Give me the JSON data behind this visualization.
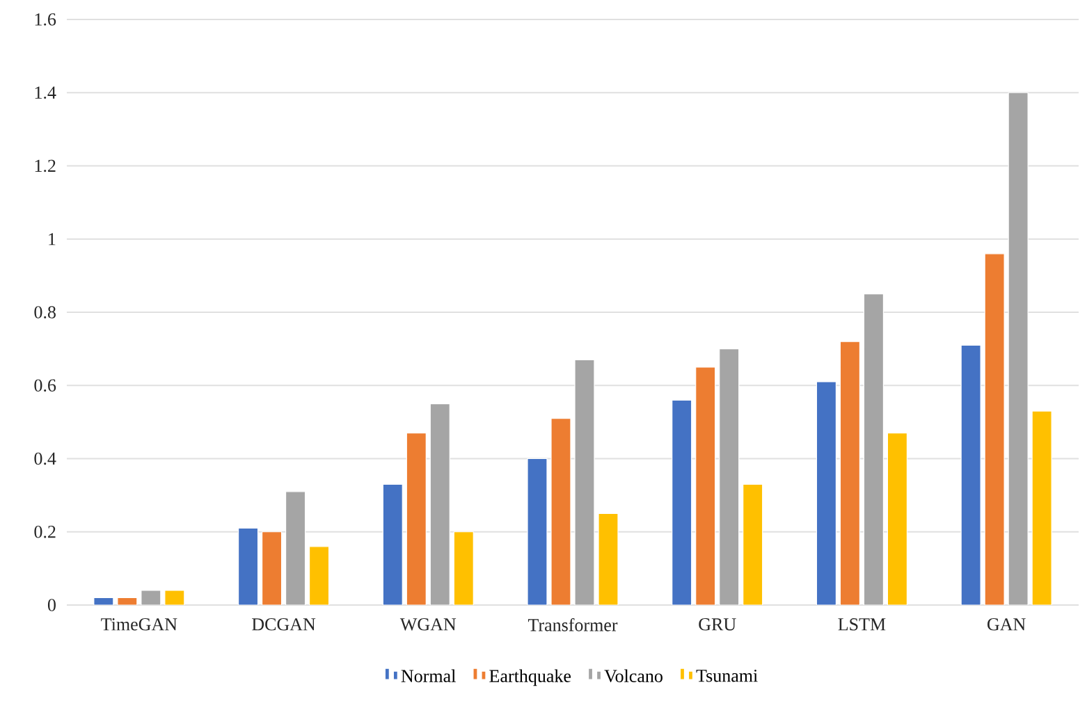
{
  "chart_data": {
    "type": "bar",
    "categories": [
      "TimeGAN",
      "DCGAN",
      "WGAN",
      "Transformer",
      "GRU",
      "LSTM",
      "GAN"
    ],
    "series": [
      {
        "name": "Normal",
        "color": "#4472c4",
        "values": [
          0.02,
          0.21,
          0.33,
          0.4,
          0.56,
          0.61,
          0.71
        ]
      },
      {
        "name": "Earthquake",
        "color": "#ed7d31",
        "values": [
          0.02,
          0.2,
          0.47,
          0.51,
          0.65,
          0.72,
          0.96
        ]
      },
      {
        "name": "Volcano",
        "color": "#a5a5a5",
        "values": [
          0.04,
          0.31,
          0.55,
          0.67,
          0.7,
          0.85,
          1.4
        ]
      },
      {
        "name": "Tsunami",
        "color": "#ffc000",
        "values": [
          0.04,
          0.16,
          0.2,
          0.25,
          0.33,
          0.47,
          0.53
        ]
      }
    ],
    "ylim": [
      0,
      1.6
    ],
    "yticks": [
      0,
      0.2,
      0.4,
      0.6,
      0.8,
      1,
      1.2,
      1.4,
      1.6
    ],
    "grid": "y",
    "legend": "bottom"
  }
}
